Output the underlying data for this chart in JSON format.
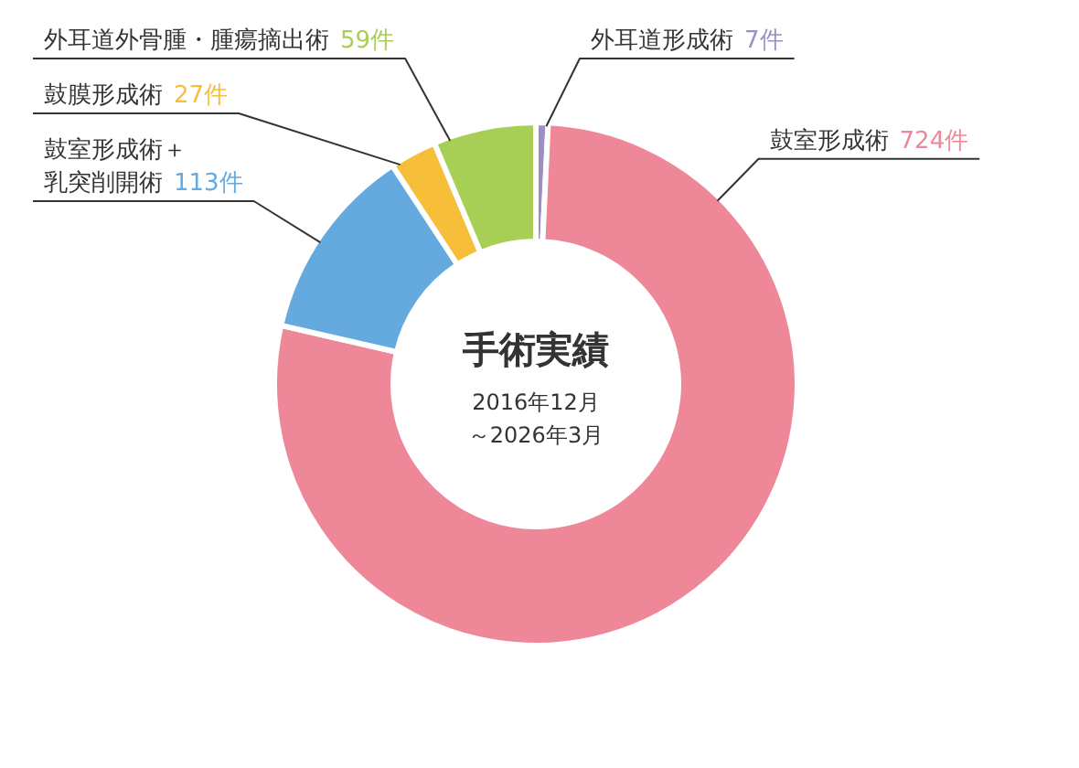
{
  "chart_data": {
    "type": "donut",
    "title": "手術実績",
    "subtitle": "2016年12月～2026年3月",
    "categories": [
      "外耳道形成術",
      "鼓室形成術",
      "鼓室形成術＋乳突削開術",
      "鼓膜形成術",
      "外耳道外骨腫・腫瘍摘出術"
    ],
    "values": [
      7,
      724,
      113,
      27,
      59
    ],
    "value_labels": [
      "7件",
      "724件",
      "113件",
      "27件",
      "59件"
    ],
    "colors": [
      "#9b8fc6",
      "#ee8899",
      "#64aadf",
      "#f7be3a",
      "#a8cf55"
    ]
  }
}
